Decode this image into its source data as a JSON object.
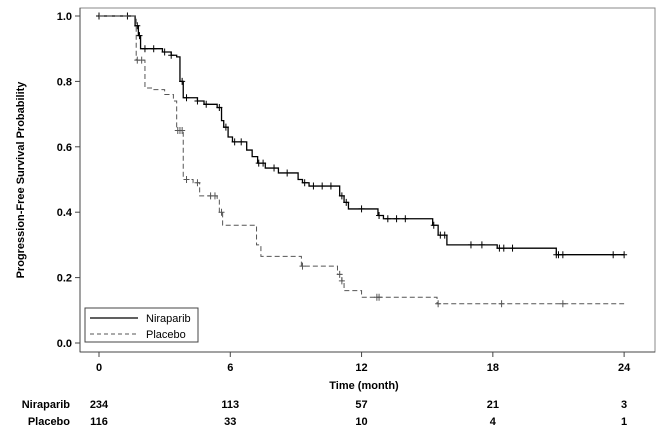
{
  "chart_data": {
    "type": "line",
    "subtype": "kaplan-meier step",
    "title": "",
    "xlabel": "Time (month)",
    "ylabel": "Progression-Free Survival Probability",
    "xlim": [
      0,
      24
    ],
    "ylim": [
      0,
      1
    ],
    "xticks": [
      "0",
      "6",
      "12",
      "18",
      "24"
    ],
    "yticks": [
      "0.0",
      "0.2",
      "0.4",
      "0.6",
      "0.8",
      "1.0"
    ],
    "grid": false,
    "legend_position": "bottom-left",
    "series": [
      {
        "name": "Niraparib",
        "style": "solid",
        "color": "#000000",
        "steps": [
          [
            0,
            1.0
          ],
          [
            1.65,
            0.97
          ],
          [
            1.8,
            0.94
          ],
          [
            1.9,
            0.9
          ],
          [
            2.9,
            0.89
          ],
          [
            3.3,
            0.88
          ],
          [
            3.55,
            0.875
          ],
          [
            3.7,
            0.8
          ],
          [
            3.85,
            0.75
          ],
          [
            4.5,
            0.74
          ],
          [
            4.8,
            0.73
          ],
          [
            5.4,
            0.72
          ],
          [
            5.6,
            0.68
          ],
          [
            5.7,
            0.66
          ],
          [
            5.9,
            0.63
          ],
          [
            6.1,
            0.615
          ],
          [
            6.75,
            0.59
          ],
          [
            7.0,
            0.57
          ],
          [
            7.25,
            0.55
          ],
          [
            7.6,
            0.535
          ],
          [
            8.2,
            0.52
          ],
          [
            9.1,
            0.5
          ],
          [
            9.3,
            0.49
          ],
          [
            9.6,
            0.48
          ],
          [
            11.0,
            0.45
          ],
          [
            11.2,
            0.43
          ],
          [
            11.4,
            0.41
          ],
          [
            12.75,
            0.39
          ],
          [
            13.0,
            0.38
          ],
          [
            15.25,
            0.36
          ],
          [
            15.5,
            0.33
          ],
          [
            15.9,
            0.3
          ],
          [
            18.2,
            0.29
          ],
          [
            20.9,
            0.27
          ],
          [
            24,
            0.27
          ]
        ],
        "censored": [
          0,
          1.3,
          1.75,
          1.85,
          2.1,
          2.5,
          3.0,
          3.3,
          3.8,
          4.0,
          4.5,
          4.9,
          5.5,
          5.8,
          6.2,
          6.5,
          7.3,
          7.5,
          8.0,
          8.6,
          9.4,
          9.8,
          10.2,
          10.6,
          11.1,
          11.3,
          12.0,
          12.8,
          13.2,
          13.6,
          14.0,
          15.3,
          15.6,
          15.8,
          17.0,
          17.5,
          18.3,
          18.5,
          18.9,
          20.9,
          21.0,
          21.2,
          23.5,
          24.0
        ]
      },
      {
        "name": "Placebo",
        "style": "dashed",
        "color": "#555555",
        "steps": [
          [
            0,
            1.0
          ],
          [
            1.7,
            0.865
          ],
          [
            2.1,
            0.78
          ],
          [
            2.4,
            0.775
          ],
          [
            3.0,
            0.76
          ],
          [
            3.4,
            0.74
          ],
          [
            3.55,
            0.65
          ],
          [
            3.85,
            0.5
          ],
          [
            4.3,
            0.49
          ],
          [
            4.6,
            0.45
          ],
          [
            5.4,
            0.44
          ],
          [
            5.5,
            0.4
          ],
          [
            5.65,
            0.36
          ],
          [
            7.2,
            0.3
          ],
          [
            7.4,
            0.265
          ],
          [
            9.25,
            0.235
          ],
          [
            10.9,
            0.21
          ],
          [
            11.1,
            0.19
          ],
          [
            11.2,
            0.16
          ],
          [
            12.0,
            0.14
          ],
          [
            15.45,
            0.12
          ],
          [
            24,
            0.12
          ]
        ],
        "censored": [
          1.75,
          1.95,
          3.6,
          3.7,
          3.8,
          4.0,
          4.5,
          5.1,
          5.3,
          5.6,
          9.3,
          11.0,
          11.1,
          12.7,
          12.8,
          15.5,
          18.4,
          21.2
        ]
      }
    ],
    "risk_table": {
      "times": [
        0,
        6,
        12,
        18,
        24
      ],
      "rows": [
        {
          "label": "Niraparib",
          "values": [
            "234",
            "113",
            "57",
            "21",
            "3"
          ]
        },
        {
          "label": "Placebo",
          "values": [
            "116",
            "33",
            "10",
            "4",
            "1"
          ]
        }
      ]
    }
  }
}
